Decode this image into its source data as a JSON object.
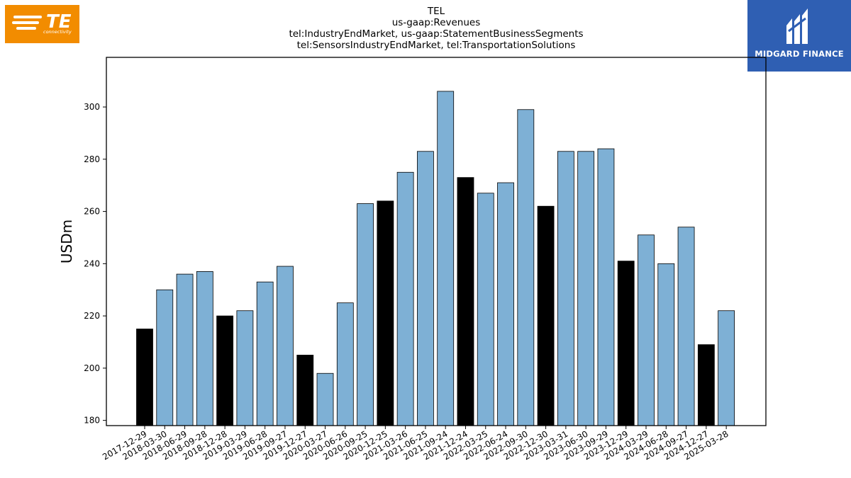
{
  "header": {
    "title_lines": [
      "TEL",
      "us-gaap:Revenues",
      "tel:IndustryEndMarket, us-gaap:StatementBusinessSegments",
      "tel:SensorsIndustryEndMarket, tel:TransportationSolutions"
    ]
  },
  "logos": {
    "left": {
      "mark": "TE",
      "sub": "connectivity",
      "color": "#f28c00"
    },
    "right": {
      "text": "MIDGARD FINANCE",
      "color": "#2f5fb3"
    }
  },
  "chart_data": {
    "type": "bar",
    "ylabel": "USDm",
    "xlabel": "",
    "ylim": [
      178,
      319
    ],
    "yticks": [
      180,
      200,
      220,
      240,
      260,
      280,
      300
    ],
    "grid": false,
    "colors": {
      "quarter": "#7eb0d5",
      "annual": "#000000",
      "edge": "#000000"
    },
    "categories": [
      "2017-12-29",
      "2018-03-30",
      "2018-06-29",
      "2018-09-28",
      "2018-12-28",
      "2019-03-29",
      "2019-06-28",
      "2019-09-27",
      "2019-12-27",
      "2020-03-27",
      "2020-06-26",
      "2020-09-25",
      "2020-12-25",
      "2021-03-26",
      "2021-06-25",
      "2021-09-24",
      "2021-12-24",
      "2022-03-25",
      "2022-06-24",
      "2022-09-30",
      "2022-12-30",
      "2023-03-31",
      "2023-06-30",
      "2023-09-29",
      "2023-12-29",
      "2024-03-29",
      "2024-06-28",
      "2024-09-27",
      "2024-12-27",
      "2025-03-28"
    ],
    "values": [
      215,
      230,
      236,
      237,
      220,
      222,
      233,
      239,
      205,
      198,
      225,
      263,
      264,
      275,
      283,
      306,
      273,
      267,
      271,
      299,
      262,
      283,
      283,
      284,
      241,
      251,
      240,
      254,
      209,
      222
    ],
    "highlight": [
      true,
      false,
      false,
      false,
      true,
      false,
      false,
      false,
      true,
      false,
      false,
      false,
      true,
      false,
      false,
      false,
      true,
      false,
      false,
      false,
      true,
      false,
      false,
      false,
      true,
      false,
      false,
      false,
      true,
      false
    ]
  }
}
